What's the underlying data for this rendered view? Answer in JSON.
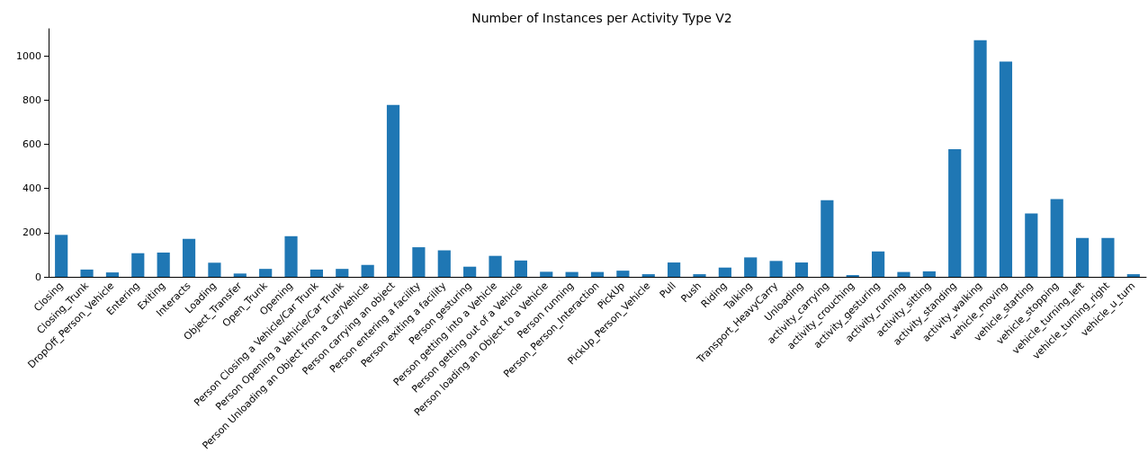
{
  "chart_data": {
    "type": "bar",
    "title": "Number of Instances per Activity Type V2",
    "categories": [
      "Closing",
      "Closing_Trunk",
      "DropOff_Person_Vehicle",
      "Entering",
      "Exiting",
      "Interacts",
      "Loading",
      "Object_Transfer",
      "Open_Trunk",
      "Opening",
      "Person Closing a Vehicle/Car Trunk",
      "Person Opening a Vehicle/Car Trunk",
      "Person Unloading an Object from a Car/Vehicle",
      "Person carrying an object",
      "Person entering a facility",
      "Person exiting a facility",
      "Person gesturing",
      "Person getting into a Vehicle",
      "Person getting out of a Vehicle",
      "Person loading an Object to a Vehicle",
      "Person running",
      "Person_Person_Interaction",
      "PickUp",
      "PickUp_Person_Vehicle",
      "Pull",
      "Push",
      "Riding",
      "Talking",
      "Transport_HeavyCarry",
      "Unloading",
      "activity_carrying",
      "activity_crouching",
      "activity_gesturing",
      "activity_running",
      "activity_sitting",
      "activity_standing",
      "activity_walking",
      "vehicle_moving",
      "vehicle_starting",
      "vehicle_stopping",
      "vehicle_turning_left",
      "vehicle_turning_right",
      "vehicle_u_turn"
    ],
    "values": [
      190,
      33,
      20,
      107,
      110,
      172,
      64,
      15,
      36,
      184,
      33,
      36,
      54,
      778,
      134,
      120,
      46,
      95,
      74,
      23,
      22,
      22,
      28,
      12,
      65,
      12,
      42,
      88,
      72,
      65,
      347,
      8,
      115,
      22,
      25,
      578,
      1071,
      974,
      287,
      352,
      176,
      176,
      12
    ],
    "color": "#1f77b4",
    "ylim": [
      0,
      1123
    ],
    "yticks": [
      0,
      200,
      400,
      600,
      800,
      1000
    ],
    "grid": false
  }
}
